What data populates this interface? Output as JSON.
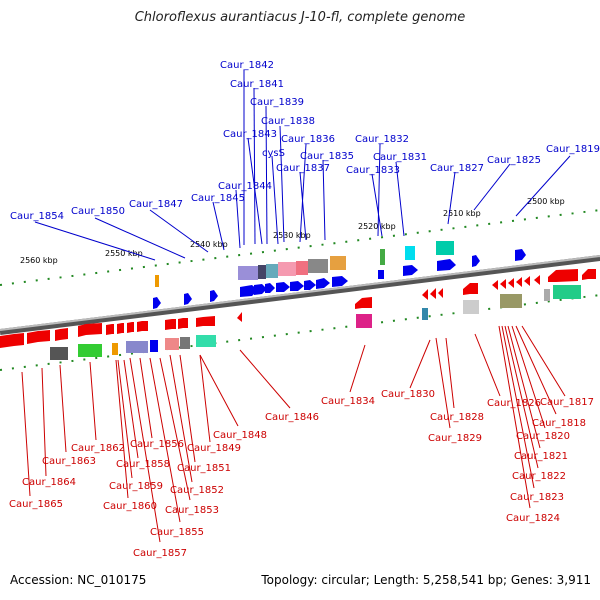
{
  "title": "Chloroflexus aurantiacus J-10-fl, complete genome",
  "footer": {
    "accession": "Accession: NC_010175",
    "summary": "Topology: circular; Length: 5,258,541 bp; Genes: 3,911"
  },
  "colors": {
    "forward_gene": "#0000ee",
    "reverse_gene": "#ee0000",
    "forward_label": "#0000cc",
    "reverse_label": "#cc0000",
    "backbone": "#888888",
    "tick": "#228822"
  },
  "scale_labels": [
    "2560 kbp",
    "2550 kbp",
    "2540 kbp",
    "2530 kbp",
    "2520 kbp",
    "2510 kbp",
    "2500 kbp"
  ],
  "forward_labels": [
    "Caur_1842",
    "Caur_1841",
    "Caur_1839",
    "Caur_1838",
    "Caur_1843",
    "Caur_1836",
    "cysS",
    "Caur_1835",
    "Caur_1837",
    "Caur_1844",
    "Caur_1845",
    "Caur_1854",
    "Caur_1850",
    "Caur_1847",
    "Caur_1832",
    "Caur_1831",
    "Caur_1833",
    "Caur_1827",
    "Caur_1825",
    "Caur_1819"
  ],
  "reverse_labels": [
    "Caur_1846",
    "Caur_1848",
    "Caur_1849",
    "Caur_1851",
    "Caur_1852",
    "Caur_1853",
    "Caur_1855",
    "Caur_1856",
    "Caur_1857",
    "Caur_1858",
    "Caur_1859",
    "Caur_1860",
    "Caur_1862",
    "Caur_1863",
    "Caur_1864",
    "Caur_1865",
    "Caur_1834",
    "Caur_1830",
    "Caur_1828",
    "Caur_1829",
    "Caur_1826",
    "Caur_1817",
    "Caur_1818",
    "Caur_1820",
    "Caur_1821",
    "Caur_1822",
    "Caur_1823",
    "Caur_1824"
  ]
}
